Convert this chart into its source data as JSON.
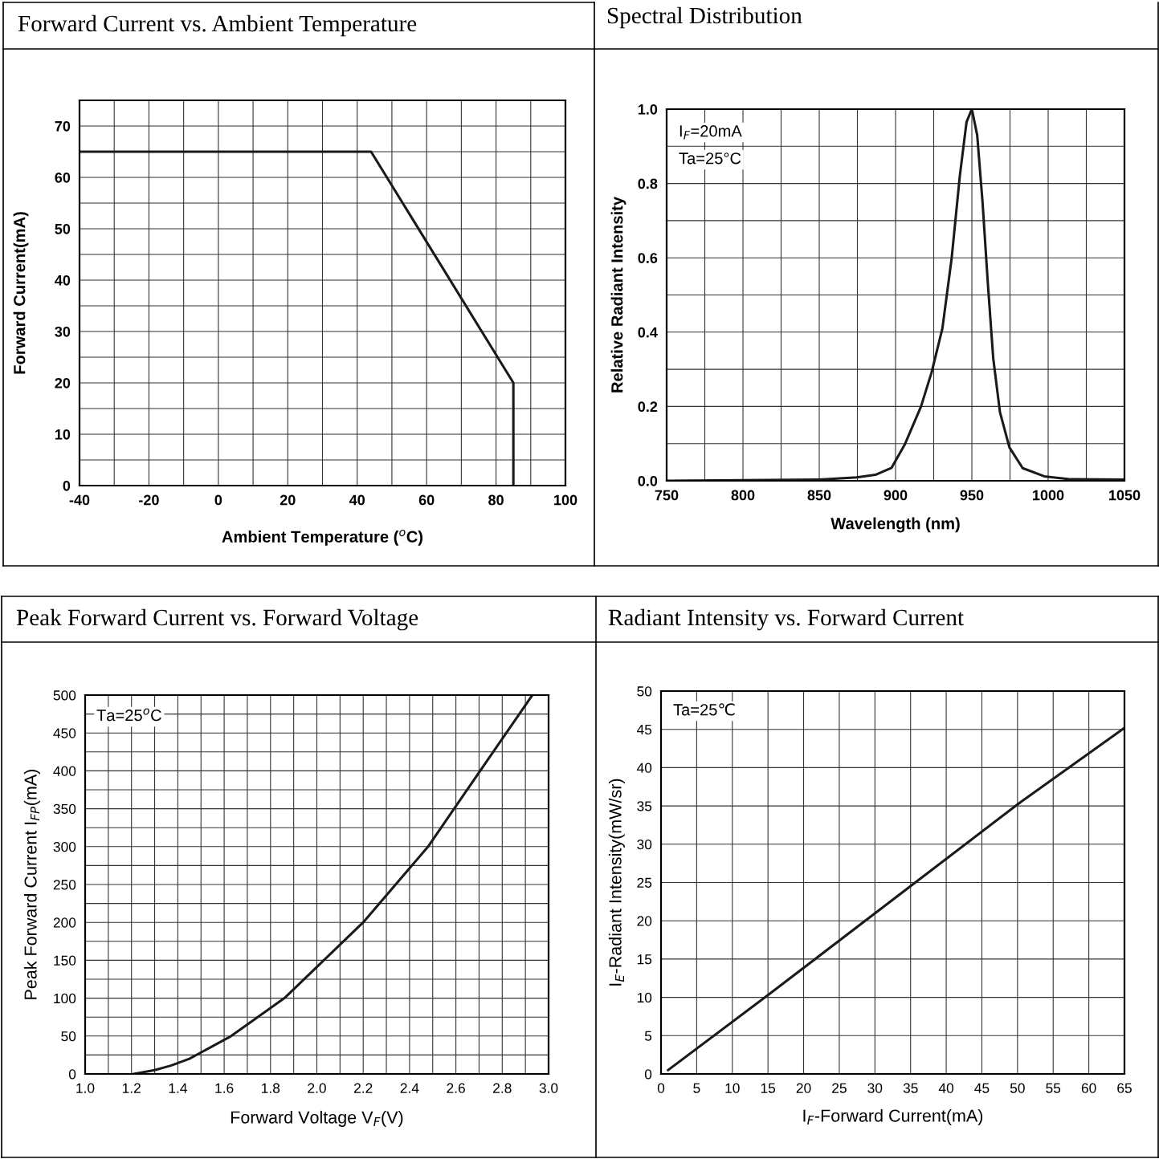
{
  "chart_data": [
    {
      "type": "line",
      "title": "Forward Current vs. Ambient Temperature",
      "xlabel": "Ambient Temperature ($^{o}$C)",
      "ylabel": "Forward Current(mA)",
      "series": [
        {
          "color": "#1a1a1a",
          "x": [
            -40,
            44,
            85,
            85
          ],
          "values": [
            65,
            65,
            20,
            0
          ]
        }
      ],
      "xlim": [
        -40,
        100
      ],
      "ylim": [
        0,
        75
      ],
      "xticks": [
        -40,
        {
          "value": -30,
          "label": null
        },
        -20,
        {
          "value": -10,
          "label": null
        },
        0,
        {
          "value": 10,
          "label": null
        },
        20,
        {
          "value": 30,
          "label": null
        },
        40,
        {
          "value": 50,
          "label": null
        },
        60,
        {
          "value": 70,
          "label": null
        },
        80,
        {
          "value": 90,
          "label": null
        },
        100
      ],
      "yticks": [
        0,
        {
          "value": 5,
          "label": null
        },
        10,
        {
          "value": 15,
          "label": null
        },
        20,
        {
          "value": 25,
          "label": null
        },
        30,
        {
          "value": 35,
          "label": null
        },
        40,
        {
          "value": 45,
          "label": null
        },
        50,
        {
          "value": 55,
          "label": null
        },
        60,
        {
          "value": 65,
          "label": null
        },
        70,
        {
          "value": 75,
          "label": null
        }
      ],
      "grid": true,
      "marker": "none",
      "line_style": "solid"
    },
    {
      "type": "line",
      "title": "Spectral Distribution",
      "xlabel": "Wavelength (nm)",
      "ylabel": "Relative Radiant Intensity",
      "annotations": [
        "I$_{F}$=20mA",
        "Ta=25°C"
      ],
      "series": [
        {
          "color": "#1a1a1a",
          "x": [
            750,
            850,
            874.6,
            886.8,
            897.4,
            906.2,
            916.7,
            923.7,
            930.7,
            936.8,
            942.1,
            946.5,
            950,
            953.5,
            957,
            960.5,
            964,
            968.4,
            974.6,
            983.3,
            997.4,
            1015,
            1050
          ],
          "values": [
            0.0,
            0.003,
            0.009,
            0.016,
            0.035,
            0.099,
            0.2,
            0.293,
            0.41,
            0.6,
            0.82,
            0.965,
            1.0,
            0.93,
            0.75,
            0.53,
            0.33,
            0.185,
            0.09,
            0.034,
            0.012,
            0.004,
            0.003
          ]
        }
      ],
      "xlim": [
        750,
        1050
      ],
      "ylim": [
        0,
        1.0
      ],
      "xticks": [
        750,
        {
          "value": 775,
          "label": null
        },
        800,
        {
          "value": 825,
          "label": null
        },
        850,
        {
          "value": 875,
          "label": null
        },
        900,
        {
          "value": 925,
          "label": null
        },
        950,
        {
          "value": 975,
          "label": null
        },
        1000,
        {
          "value": 1025,
          "label": null
        },
        1050
      ],
      "yticks": [
        {
          "value": 0,
          "label": "0.0"
        },
        {
          "value": 0.1,
          "label": null
        },
        {
          "value": 0.2,
          "label": "0.2"
        },
        {
          "value": 0.3,
          "label": null
        },
        {
          "value": 0.4,
          "label": "0.4"
        },
        {
          "value": 0.5,
          "label": null
        },
        {
          "value": 0.6,
          "label": "0.6"
        },
        {
          "value": 0.7,
          "label": null
        },
        {
          "value": 0.8,
          "label": "0.8"
        },
        {
          "value": 0.9,
          "label": null
        },
        {
          "value": 1.0,
          "label": "1.0"
        }
      ],
      "grid": true,
      "marker": "none",
      "line_style": "solid"
    },
    {
      "type": "line",
      "title": "Peak Forward Current vs. Forward Voltage",
      "xlabel": "Forward Voltage V$_{F}$(V)",
      "ylabel": "Peak Forward Current I$_{FP}$(mA)",
      "annotations": [
        "Ta=25$^{o}$C"
      ],
      "series": [
        {
          "color": "#1a1a1a",
          "x": [
            1.21,
            1.3,
            1.37,
            1.45,
            1.63,
            1.86,
            2.2,
            2.48,
            2.7,
            2.93
          ],
          "values": [
            0,
            5,
            11,
            20,
            50,
            100,
            200,
            300,
            398,
            500
          ]
        }
      ],
      "xlim": [
        1.0,
        3.0
      ],
      "ylim": [
        0,
        500
      ],
      "xticks": [
        {
          "value": 1.0,
          "label": "1.0"
        },
        {
          "value": 1.1,
          "label": null
        },
        {
          "value": 1.2,
          "label": "1.2"
        },
        {
          "value": 1.3,
          "label": null
        },
        {
          "value": 1.4,
          "label": "1.4"
        },
        {
          "value": 1.5,
          "label": null
        },
        {
          "value": 1.6,
          "label": "1.6"
        },
        {
          "value": 1.7,
          "label": null
        },
        {
          "value": 1.8,
          "label": "1.8"
        },
        {
          "value": 1.9,
          "label": null
        },
        {
          "value": 2.0,
          "label": "2.0"
        },
        {
          "value": 2.1,
          "label": null
        },
        {
          "value": 2.2,
          "label": "2.2"
        },
        {
          "value": 2.3,
          "label": null
        },
        {
          "value": 2.4,
          "label": "2.4"
        },
        {
          "value": 2.5,
          "label": null
        },
        {
          "value": 2.6,
          "label": "2.6"
        },
        {
          "value": 2.7,
          "label": null
        },
        {
          "value": 2.8,
          "label": "2.8"
        },
        {
          "value": 2.9,
          "label": null
        },
        {
          "value": 3.0,
          "label": "3.0"
        }
      ],
      "yticks": [
        0,
        {
          "value": 25,
          "label": null
        },
        50,
        {
          "value": 75,
          "label": null
        },
        100,
        {
          "value": 125,
          "label": null
        },
        150,
        {
          "value": 175,
          "label": null
        },
        200,
        {
          "value": 225,
          "label": null
        },
        250,
        {
          "value": 275,
          "label": null
        },
        300,
        {
          "value": 325,
          "label": null
        },
        350,
        {
          "value": 375,
          "label": null
        },
        400,
        {
          "value": 425,
          "label": null
        },
        450,
        {
          "value": 475,
          "label": null
        },
        500
      ],
      "grid": true,
      "marker": "none",
      "line_style": "solid"
    },
    {
      "type": "line",
      "title": "Radiant Intensity vs. Forward Current",
      "xlabel": "I$_{F}$-Forward Current(mA)",
      "ylabel": "I$_{E}$-Radiant Intensity(mW/sr)",
      "annotations": [
        "Ta=25℃"
      ],
      "series": [
        {
          "color": "#1a1a1a",
          "x": [
            1,
            15,
            50,
            65
          ],
          "values": [
            0.5,
            10.3,
            35.2,
            45.2
          ]
        }
      ],
      "xlim": [
        0,
        65
      ],
      "ylim": [
        0,
        50
      ],
      "xticks": [
        0,
        5,
        10,
        15,
        20,
        25,
        30,
        35,
        40,
        45,
        50,
        55,
        60,
        65
      ],
      "yticks": [
        0,
        5,
        10,
        15,
        20,
        25,
        30,
        35,
        40,
        45,
        50
      ],
      "grid": true,
      "marker": "none",
      "line_style": "solid"
    }
  ]
}
